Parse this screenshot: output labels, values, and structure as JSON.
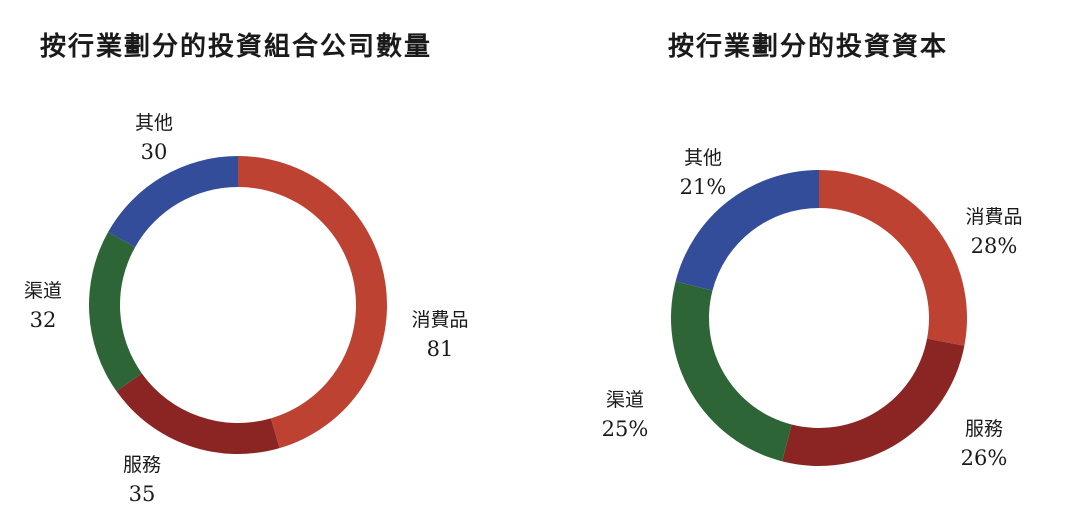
{
  "chart_data": [
    {
      "type": "pie",
      "title": "按行業劃分的投資組合公司數量",
      "categories": [
        "消費品",
        "服務",
        "渠道",
        "其他"
      ],
      "values": [
        81,
        35,
        32,
        30
      ],
      "value_labels": [
        "81",
        "35",
        "32",
        "30"
      ],
      "colors": [
        "#BD4232",
        "#8B2524",
        "#2E6537",
        "#334D9B"
      ],
      "donut": true,
      "legend": "none"
    },
    {
      "type": "pie",
      "title": "按行業劃分的投資資本",
      "categories": [
        "消費品",
        "服務",
        "渠道",
        "其他"
      ],
      "values": [
        28,
        26,
        25,
        21
      ],
      "value_labels": [
        "28%",
        "26%",
        "25%",
        "21%"
      ],
      "colors": [
        "#BD4232",
        "#8B2524",
        "#2E6537",
        "#334D9B"
      ],
      "donut": true,
      "legend": "none"
    }
  ]
}
